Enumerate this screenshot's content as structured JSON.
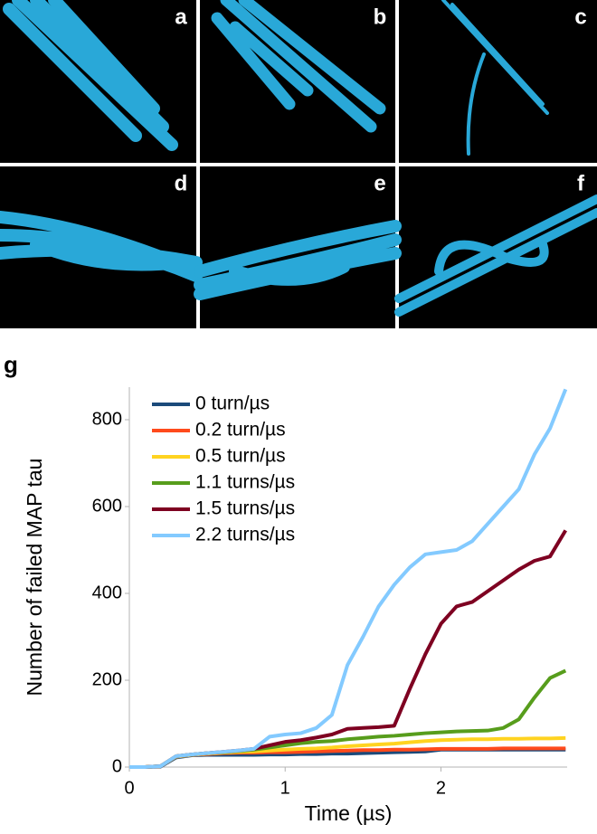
{
  "panels": [
    "a",
    "b",
    "c",
    "d",
    "e",
    "f",
    "g"
  ],
  "chart_data": {
    "type": "line",
    "y_label": "Number of failed MAP tau",
    "x_label": "Time (µs)",
    "x": [
      0,
      0.1,
      0.2,
      0.3,
      0.4,
      0.5,
      0.6,
      0.7,
      0.8,
      0.9,
      1.0,
      1.1,
      1.2,
      1.3,
      1.4,
      1.5,
      1.6,
      1.7,
      1.8,
      1.9,
      2.0,
      2.1,
      2.2,
      2.3,
      2.4,
      2.5,
      2.6,
      2.7,
      2.8
    ],
    "series": [
      {
        "name": "0 turn/µs",
        "color": "#1b4a7a",
        "values": [
          0,
          0,
          1,
          22,
          27,
          28,
          28,
          28,
          28,
          29,
          29,
          30,
          30,
          31,
          31,
          32,
          33,
          34,
          35,
          36,
          40,
          40,
          40,
          40,
          40,
          40,
          40,
          40,
          40
        ]
      },
      {
        "name": "0.2 turn/µs",
        "color": "#ff4a1c",
        "values": [
          0,
          0,
          2,
          24,
          28,
          30,
          32,
          33,
          33,
          34,
          34,
          35,
          36,
          37,
          38,
          39,
          39,
          40,
          40,
          41,
          42,
          42,
          42,
          42,
          43,
          43,
          43,
          43,
          43
        ]
      },
      {
        "name": "0.5 turn/µs",
        "color": "#ffd320",
        "values": [
          0,
          0,
          2,
          24,
          28,
          31,
          33,
          35,
          36,
          38,
          40,
          42,
          43,
          45,
          48,
          50,
          52,
          54,
          57,
          60,
          62,
          63,
          64,
          64,
          65,
          65,
          66,
          66,
          67
        ]
      },
      {
        "name": "1.1 turns/µs",
        "color": "#579d1c",
        "values": [
          0,
          0,
          2,
          25,
          29,
          32,
          34,
          37,
          40,
          45,
          50,
          55,
          58,
          60,
          64,
          67,
          70,
          72,
          75,
          78,
          80,
          82,
          83,
          84,
          90,
          110,
          160,
          205,
          222
        ]
      },
      {
        "name": "1.5 turns/µs",
        "color": "#7e0021",
        "values": [
          0,
          0,
          2,
          25,
          29,
          32,
          35,
          38,
          42,
          50,
          58,
          62,
          68,
          75,
          88,
          90,
          92,
          95,
          180,
          260,
          330,
          370,
          380,
          405,
          430,
          455,
          475,
          485,
          545
        ]
      },
      {
        "name": "2.2 turns/µs",
        "color": "#83caff",
        "values": [
          0,
          0,
          2,
          25,
          29,
          32,
          35,
          38,
          42,
          70,
          75,
          78,
          90,
          120,
          235,
          300,
          370,
          420,
          460,
          490,
          495,
          500,
          520,
          560,
          600,
          640,
          720,
          780,
          870
        ]
      }
    ],
    "xlim": [
      0,
      2.81
    ],
    "ylim": [
      0,
      875
    ],
    "xticks": [
      0,
      1,
      2
    ],
    "yticks": [
      0,
      200,
      400,
      600,
      800
    ]
  }
}
